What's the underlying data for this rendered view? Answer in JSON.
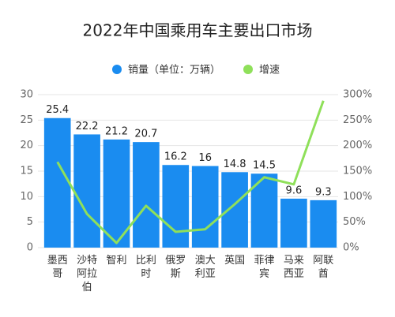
{
  "chart_data": {
    "type": "bar-line",
    "title": "2022年中国乘用车主要出口市场",
    "categories": [
      "墨西哥",
      "沙特阿拉伯",
      "智利",
      "比利时",
      "俄罗斯",
      "澳大利亚",
      "英国",
      "菲律宾",
      "马来西亚",
      "阿联酋"
    ],
    "series": [
      {
        "name": "销量（单位：万辆）",
        "type": "bar",
        "color": "#1a8cf0",
        "values": [
          25.4,
          22.2,
          21.2,
          20.7,
          16.2,
          16,
          14.8,
          14.5,
          9.6,
          9.3
        ]
      },
      {
        "name": "增速",
        "type": "line",
        "axis": "y2",
        "color": "#8fe05a",
        "values": [
          168,
          66,
          9,
          82,
          31,
          36,
          85,
          138,
          124,
          288
        ]
      }
    ],
    "ylim": [
      0,
      30
    ],
    "yticks": [
      0,
      5,
      10,
      15,
      20,
      25,
      30
    ],
    "y2lim": [
      0,
      300
    ],
    "y2ticks": [
      {
        "value": 0,
        "label": "0%"
      },
      {
        "value": 50,
        "label": "50%"
      },
      {
        "value": 100,
        "label": "100%"
      },
      {
        "value": 150,
        "label": "150%"
      },
      {
        "value": 200,
        "label": "200%"
      },
      {
        "value": 250,
        "label": "250%"
      },
      {
        "value": 300,
        "label": "300%"
      }
    ],
    "grid": true
  }
}
